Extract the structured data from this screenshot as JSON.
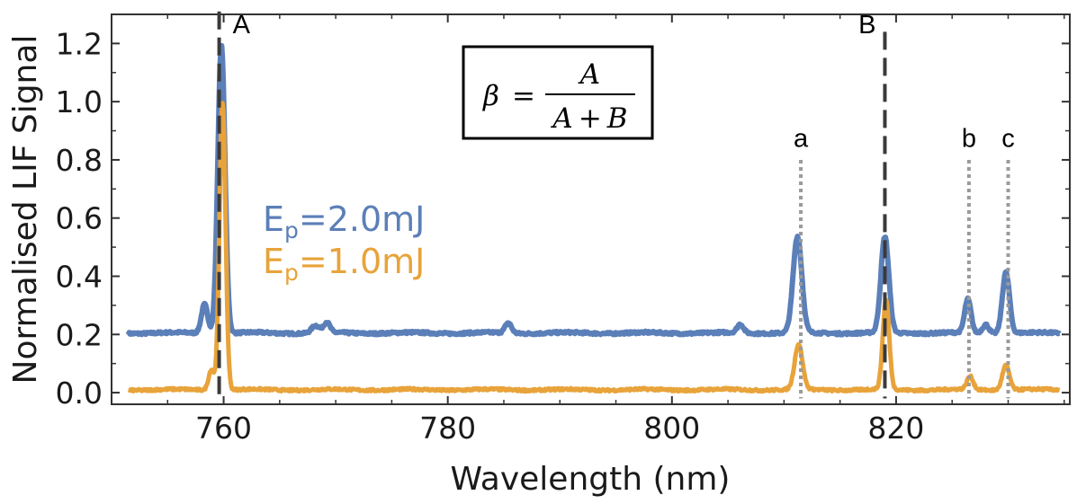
{
  "chart_data": {
    "type": "line",
    "title": "",
    "xlabel": "Wavelength (nm)",
    "ylabel": "Normalised LIF Signal",
    "xlim": [
      750,
      835.5
    ],
    "ylim": [
      -0.04,
      1.3
    ],
    "xticks": [
      760,
      780,
      800,
      820
    ],
    "yticks": [
      0.0,
      0.2,
      0.4,
      0.6,
      0.8,
      1.0,
      1.2
    ],
    "ytick_labels": [
      "0.0",
      "0.2",
      "0.4",
      "0.6",
      "0.8",
      "1.0",
      "1.2"
    ],
    "grid": false,
    "legend_position": "left, inside plot",
    "series": [
      {
        "name": "Ep=2.0mJ",
        "legend_main": "E",
        "legend_sub": "p",
        "legend_rest": "=2.0mJ",
        "color": "#5b7fb8",
        "baseline": 0.205,
        "peaks": [
          {
            "x": 759.8,
            "height": 0.99,
            "width": 0.45
          },
          {
            "x": 758.3,
            "height": 0.1,
            "width": 0.4
          },
          {
            "x": 768.2,
            "height": 0.025,
            "width": 0.5
          },
          {
            "x": 769.2,
            "height": 0.035,
            "width": 0.4
          },
          {
            "x": 785.4,
            "height": 0.035,
            "width": 0.4
          },
          {
            "x": 806.1,
            "height": 0.03,
            "width": 0.4
          },
          {
            "x": 811.2,
            "height": 0.33,
            "width": 0.55
          },
          {
            "x": 819.0,
            "height": 0.33,
            "width": 0.5
          },
          {
            "x": 826.4,
            "height": 0.115,
            "width": 0.4
          },
          {
            "x": 828.0,
            "height": 0.03,
            "width": 0.4
          },
          {
            "x": 829.8,
            "height": 0.21,
            "width": 0.45
          }
        ]
      },
      {
        "name": "Ep=1.0mJ",
        "legend_main": "E",
        "legend_sub": "p",
        "legend_rest": "=1.0mJ",
        "color": "#e8a33a",
        "baseline": 0.01,
        "peaks": [
          {
            "x": 759.9,
            "height": 0.99,
            "width": 0.38
          },
          {
            "x": 758.9,
            "height": 0.07,
            "width": 0.35
          },
          {
            "x": 811.3,
            "height": 0.155,
            "width": 0.5
          },
          {
            "x": 819.1,
            "height": 0.31,
            "width": 0.4
          },
          {
            "x": 826.6,
            "height": 0.045,
            "width": 0.4
          },
          {
            "x": 829.8,
            "height": 0.085,
            "width": 0.45
          }
        ]
      }
    ],
    "markers": [
      {
        "label": "A",
        "x": 759.6,
        "style": "dashed",
        "color": "#3a3a3a",
        "y_top": 1.31,
        "label_y": 1.235,
        "label_dx": 15,
        "anchor": "start"
      },
      {
        "label": "B",
        "x": 819.0,
        "style": "dashed",
        "color": "#3a3a3a",
        "y_top": 1.24,
        "label_y": 1.235,
        "label_dx": -10,
        "anchor": "end"
      },
      {
        "label": "a",
        "x": 811.5,
        "style": "dotted",
        "color": "#9a9a9a",
        "y_top": 0.8,
        "label_y": 0.845,
        "label_dx": 0,
        "anchor": "middle"
      },
      {
        "label": "b",
        "x": 826.5,
        "style": "dotted",
        "color": "#9a9a9a",
        "y_top": 0.8,
        "label_y": 0.845,
        "label_dx": 0,
        "anchor": "middle"
      },
      {
        "label": "c",
        "x": 830.0,
        "style": "dotted",
        "color": "#9a9a9a",
        "y_top": 0.8,
        "label_y": 0.845,
        "label_dx": 0,
        "anchor": "middle"
      }
    ],
    "annotation": {
      "lhs": "β",
      "eq": "=",
      "numerator": "A",
      "denominator_a": "A",
      "plus": "+",
      "denominator_b": "B"
    }
  }
}
